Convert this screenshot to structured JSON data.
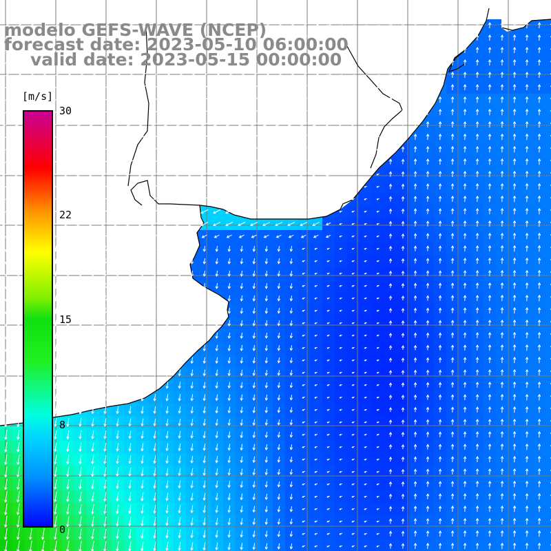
{
  "titles": {
    "line1": "modelo GEFS-WAVE (NCEP)",
    "line2": "forecast date: 2023-05-10 06:00:00",
    "line3": "valid date: 2023-05-15 00:00:00"
  },
  "colorbar": {
    "unit": "[m/s]",
    "ticks": [
      "30",
      "22",
      "15",
      "8",
      "0"
    ],
    "colors": [
      "#0000ff",
      "#00b4ff",
      "#00e8e8",
      "#19e619",
      "#00c800",
      "#ffff00",
      "#ff8c00",
      "#ff0000",
      "#c800c8"
    ]
  },
  "map": {
    "land_color": "#ffffff",
    "grid_color": "#7a7a7a",
    "coast_color": "#000000",
    "arrow_color": "#ffffff"
  }
}
